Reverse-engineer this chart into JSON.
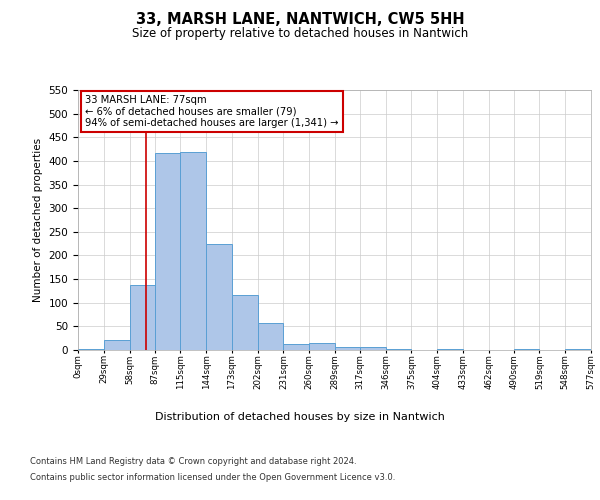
{
  "title": "33, MARSH LANE, NANTWICH, CW5 5HH",
  "subtitle": "Size of property relative to detached houses in Nantwich",
  "xlabel": "Distribution of detached houses by size in Nantwich",
  "ylabel": "Number of detached properties",
  "bin_edges": [
    0,
    29,
    58,
    87,
    115,
    144,
    173,
    202,
    231,
    260,
    289,
    317,
    346,
    375,
    404,
    433,
    462,
    490,
    519,
    548,
    577
  ],
  "bar_heights": [
    3,
    22,
    137,
    416,
    419,
    225,
    116,
    58,
    13,
    14,
    7,
    6,
    2,
    0,
    2,
    0,
    0,
    2,
    0,
    2
  ],
  "bar_color": "#aec6e8",
  "bar_edge_color": "#5a9fd4",
  "property_size": 77,
  "annotation_text": "33 MARSH LANE: 77sqm\n← 6% of detached houses are smaller (79)\n94% of semi-detached houses are larger (1,341) →",
  "annotation_box_color": "#ffffff",
  "annotation_box_edge_color": "#cc0000",
  "red_line_color": "#cc0000",
  "grid_color": "#cccccc",
  "background_color": "#ffffff",
  "tick_labels": [
    "0sqm",
    "29sqm",
    "58sqm",
    "87sqm",
    "115sqm",
    "144sqm",
    "173sqm",
    "202sqm",
    "231sqm",
    "260sqm",
    "289sqm",
    "317sqm",
    "346sqm",
    "375sqm",
    "404sqm",
    "433sqm",
    "462sqm",
    "490sqm",
    "519sqm",
    "548sqm",
    "577sqm"
  ],
  "ylim": [
    0,
    550
  ],
  "yticks": [
    0,
    50,
    100,
    150,
    200,
    250,
    300,
    350,
    400,
    450,
    500,
    550
  ],
  "footer_line1": "Contains HM Land Registry data © Crown copyright and database right 2024.",
  "footer_line2": "Contains public sector information licensed under the Open Government Licence v3.0."
}
